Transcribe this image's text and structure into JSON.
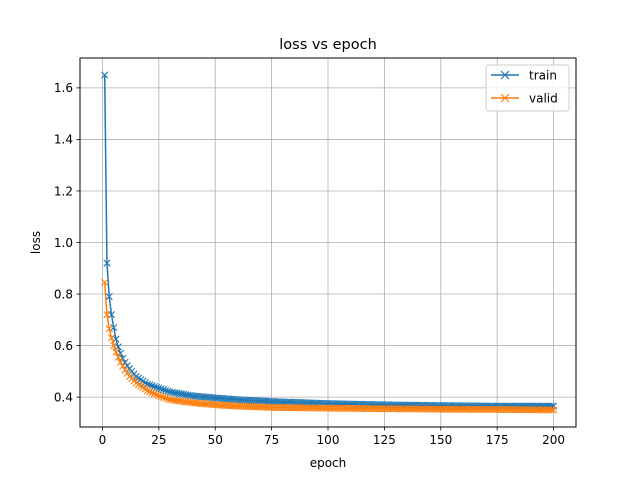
{
  "chart_data": {
    "type": "line",
    "title": "loss vs epoch",
    "xlabel": "epoch",
    "ylabel": "loss",
    "xlim": [
      -9.95,
      209.95
    ],
    "ylim": [
      0.284,
      1.716
    ],
    "grid": true,
    "legend_position": "top-right",
    "marker": "x",
    "x_ticks": [
      0,
      25,
      50,
      75,
      100,
      125,
      150,
      175,
      200
    ],
    "y_ticks": [
      0.4,
      0.6,
      0.8,
      1.0,
      1.2,
      1.4,
      1.6
    ],
    "x_tick_labels": [
      "0",
      "25",
      "50",
      "75",
      "100",
      "125",
      "150",
      "175",
      "200"
    ],
    "y_tick_labels": [
      "0.4",
      "0.6",
      "0.8",
      "1.0",
      "1.2",
      "1.4",
      "1.6"
    ],
    "x_range": [
      1,
      200
    ],
    "series": [
      {
        "name": "train",
        "color": "#1f77b4",
        "anchors": [
          [
            1,
            1.65
          ],
          [
            2,
            0.92
          ],
          [
            3,
            0.79
          ],
          [
            4,
            0.72
          ],
          [
            5,
            0.67
          ],
          [
            6,
            0.625
          ],
          [
            7,
            0.595
          ],
          [
            8,
            0.57
          ],
          [
            9,
            0.55
          ],
          [
            10,
            0.535
          ],
          [
            12,
            0.51
          ],
          [
            15,
            0.48
          ],
          [
            20,
            0.45
          ],
          [
            25,
            0.435
          ],
          [
            30,
            0.42
          ],
          [
            40,
            0.405
          ],
          [
            50,
            0.397
          ],
          [
            60,
            0.39
          ],
          [
            75,
            0.383
          ],
          [
            100,
            0.375
          ],
          [
            125,
            0.37
          ],
          [
            150,
            0.367
          ],
          [
            175,
            0.365
          ],
          [
            200,
            0.365
          ]
        ]
      },
      {
        "name": "valid",
        "color": "#ff7f0e",
        "anchors": [
          [
            1,
            0.845
          ],
          [
            2,
            0.72
          ],
          [
            3,
            0.665
          ],
          [
            4,
            0.63
          ],
          [
            5,
            0.6
          ],
          [
            6,
            0.575
          ],
          [
            7,
            0.555
          ],
          [
            8,
            0.535
          ],
          [
            9,
            0.52
          ],
          [
            10,
            0.505
          ],
          [
            12,
            0.48
          ],
          [
            15,
            0.455
          ],
          [
            20,
            0.425
          ],
          [
            25,
            0.405
          ],
          [
            30,
            0.39
          ],
          [
            40,
            0.378
          ],
          [
            50,
            0.37
          ],
          [
            60,
            0.365
          ],
          [
            75,
            0.36
          ],
          [
            100,
            0.357
          ],
          [
            125,
            0.355
          ],
          [
            150,
            0.353
          ],
          [
            175,
            0.352
          ],
          [
            200,
            0.35
          ]
        ]
      }
    ]
  }
}
